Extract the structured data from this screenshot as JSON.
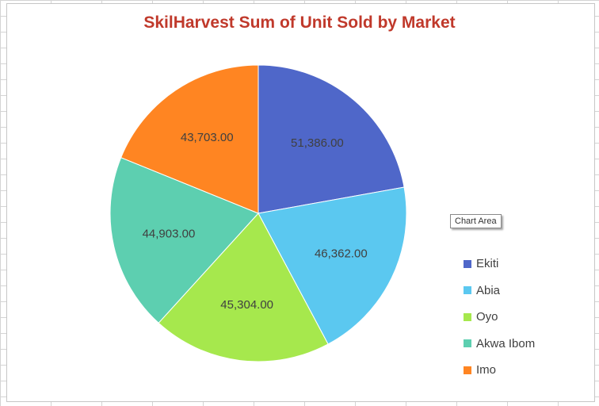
{
  "chart_data": {
    "type": "pie",
    "title": "SkilHarvest Sum of Unit Sold by Market",
    "categories": [
      "Ekiti",
      "Abia",
      "Oyo",
      "Akwa Ibom",
      "Imo"
    ],
    "values": [
      51386,
      46362,
      45304,
      44903,
      43703
    ],
    "data_labels": [
      "51,386.00",
      "46,362.00",
      "45,304.00",
      "44,903.00",
      "43,703.00"
    ],
    "colors": [
      "#4f67c9",
      "#5bc8f0",
      "#a6e84d",
      "#5dcfb0",
      "#ff8522"
    ],
    "legend": "right"
  },
  "tooltip": {
    "text": "Chart Area"
  }
}
